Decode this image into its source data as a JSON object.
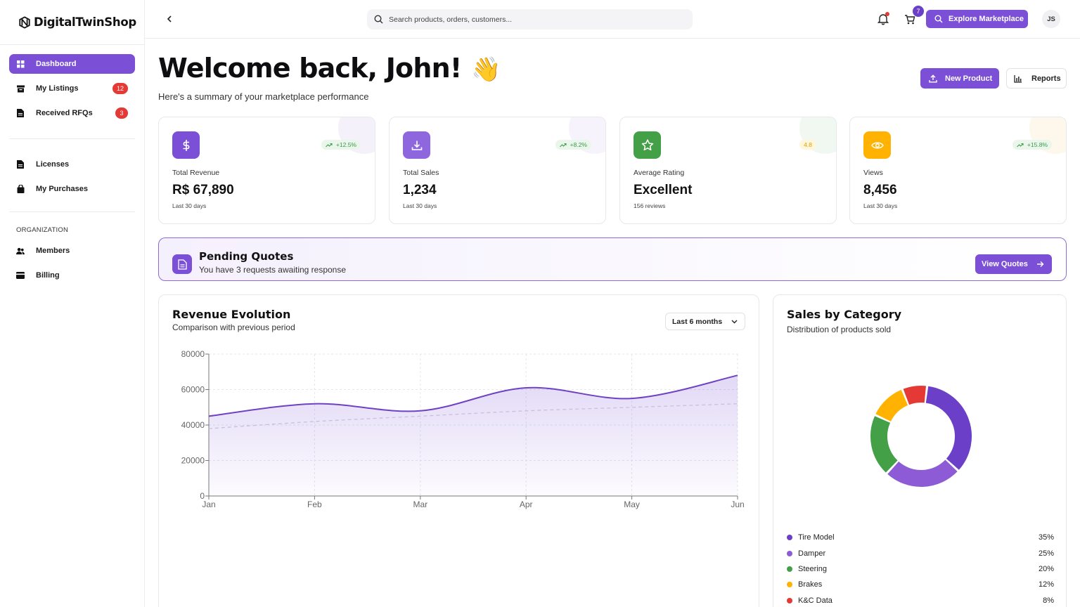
{
  "app": {
    "name": "DigitalTwinShop"
  },
  "sidebar": {
    "items": [
      {
        "label": "Dashboard",
        "icon": "grid-icon",
        "active": true
      },
      {
        "label": "My Listings",
        "icon": "archive-icon",
        "badge": "12"
      },
      {
        "label": "Received RFQs",
        "icon": "document-icon",
        "badge": "3"
      },
      {
        "label": "Licenses",
        "icon": "document-icon"
      },
      {
        "label": "My Purchases",
        "icon": "shopping-bag-icon"
      }
    ],
    "section_label": "ORGANIZATION",
    "org_items": [
      {
        "label": "Members",
        "icon": "users-icon"
      },
      {
        "label": "Billing",
        "icon": "credit-card-icon"
      }
    ]
  },
  "topbar": {
    "search_placeholder": "Search products, orders, customers...",
    "cart_count": "7",
    "explore_label": "Explore Marketplace",
    "avatar_initials": "JS"
  },
  "header": {
    "welcome": "Welcome back, John!",
    "wave_emoji": "👋",
    "subtitle": "Here's a summary of your marketplace performance",
    "new_product_label": "New Product",
    "reports_label": "Reports"
  },
  "stats": [
    {
      "label": "Total Revenue",
      "value": "R$ 67,890",
      "sub": "Last 30 days",
      "chip": "+12.5%",
      "icon": "dollar-icon",
      "color": "#7b4fd6"
    },
    {
      "label": "Total Sales",
      "value": "1,234",
      "sub": "Last 30 days",
      "chip": "+8.2%",
      "icon": "download-icon",
      "color": "#8e67de"
    },
    {
      "label": "Average Rating",
      "value": "Excellent",
      "sub": "156 reviews",
      "chip": "4.8",
      "icon": "star-icon",
      "color": "#43a047"
    },
    {
      "label": "Views",
      "value": "8,456",
      "sub": "Last 30 days",
      "chip": "+15.8%",
      "icon": "eye-icon",
      "color": "#ffb300"
    }
  ],
  "pending": {
    "title": "Pending Quotes",
    "subtitle": "You have 3 requests awaiting response",
    "button_label": "View Quotes"
  },
  "revenue": {
    "title": "Revenue Evolution",
    "subtitle": "Comparison with previous period",
    "period_label": "Last 6 months"
  },
  "categories": {
    "title": "Sales by Category",
    "subtitle": "Distribution of products sold"
  },
  "chart_data": [
    {
      "type": "area",
      "x": [
        "Jan",
        "Feb",
        "Mar",
        "Apr",
        "May",
        "Jun"
      ],
      "yticks": [
        0,
        20000,
        40000,
        60000,
        80000
      ],
      "ylim": [
        0,
        80000
      ],
      "grid": true,
      "series": [
        {
          "values": [
            45000,
            52000,
            48000,
            61000,
            55000,
            68000
          ],
          "color": "#6f42c1"
        },
        {
          "values": [
            38000,
            42000,
            45000,
            48000,
            50000,
            52000
          ],
          "color": "#c9c0dc",
          "dashed": true
        }
      ]
    },
    {
      "type": "pie",
      "categories": [
        "Tire Model",
        "Damper",
        "Steering",
        "Brakes",
        "K&C Data"
      ],
      "values": [
        35,
        25,
        20,
        12,
        8
      ],
      "labels": [
        "35%",
        "25%",
        "20%",
        "12%",
        "8%"
      ],
      "colors": [
        "#6b3fc7",
        "#8e5bd6",
        "#43a047",
        "#ffb300",
        "#e53935"
      ]
    }
  ]
}
